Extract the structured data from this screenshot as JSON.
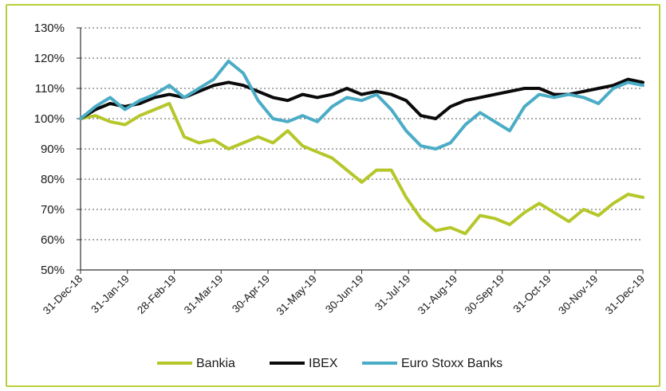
{
  "chart_data": {
    "type": "line",
    "title": "",
    "xlabel": "",
    "ylabel": "",
    "ylim": [
      50,
      130
    ],
    "y_ticks": [
      "50%",
      "60%",
      "70%",
      "80%",
      "90%",
      "100%",
      "110%",
      "120%",
      "130%"
    ],
    "x_ticks": [
      "31-Dec-18",
      "31-Jan-19",
      "28-Feb-19",
      "31-Mar-19",
      "30-Apr-19",
      "31-May-19",
      "30-Jun-19",
      "31-Jul-19",
      "31-Aug-19",
      "30-Sep-19",
      "31-Oct-19",
      "30-Nov-19",
      "31-Dec-19"
    ],
    "grid": "horizontal dotted",
    "legend_position": "bottom",
    "series": [
      {
        "name": "Bankia",
        "color": "#b5c72a",
        "values": [
          100,
          101,
          99,
          98,
          101,
          103,
          105,
          94,
          92,
          93,
          90,
          92,
          94,
          92,
          96,
          91,
          89,
          87,
          83,
          79,
          83,
          83,
          74,
          67,
          63,
          64,
          62,
          68,
          67,
          65,
          69,
          72,
          69,
          66,
          70,
          68,
          72,
          75,
          74
        ]
      },
      {
        "name": "IBEX",
        "color": "#0a0a0a",
        "values": [
          100,
          103,
          105,
          104,
          105,
          107,
          108,
          107,
          109,
          111,
          112,
          111,
          109,
          107,
          106,
          108,
          107,
          108,
          110,
          108,
          109,
          108,
          106,
          101,
          100,
          104,
          106,
          107,
          108,
          109,
          110,
          110,
          108,
          108,
          109,
          110,
          111,
          113,
          112
        ]
      },
      {
        "name": "Euro Stoxx Banks",
        "color": "#4bacc6",
        "values": [
          100,
          104,
          107,
          103,
          106,
          108,
          111,
          107,
          110,
          113,
          119,
          115,
          106,
          100,
          99,
          101,
          99,
          104,
          107,
          106,
          108,
          103,
          96,
          91,
          90,
          92,
          98,
          102,
          99,
          96,
          104,
          108,
          107,
          108,
          107,
          105,
          110,
          112,
          111
        ]
      }
    ]
  }
}
